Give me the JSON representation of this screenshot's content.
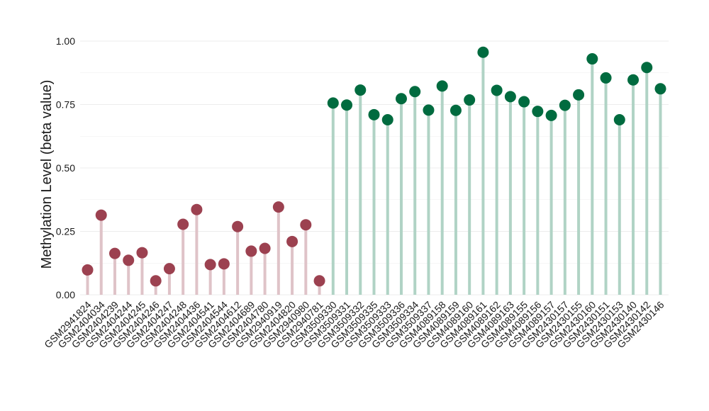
{
  "chart_data": {
    "type": "lollipop",
    "ylabel": "Methylation Level (beta value)",
    "xlabel": "",
    "ylim": [
      0,
      1
    ],
    "yticks": [
      0.0,
      0.25,
      0.5,
      0.75,
      1.0
    ],
    "ytick_labels": [
      "0.00",
      "0.25",
      "0.50",
      "0.75",
      "1.00"
    ],
    "grid": true,
    "colors": {
      "group1_point": "#9c4150",
      "group1_stem": "#dfc3c8",
      "group2_point": "#006b3f",
      "group2_stem": "#b0d3c5",
      "grid": "#ececec"
    },
    "points": [
      {
        "sample": "GSM2941824",
        "value": 0.098,
        "group": 1
      },
      {
        "sample": "GSM2404034",
        "value": 0.314,
        "group": 1
      },
      {
        "sample": "GSM2404239",
        "value": 0.163,
        "group": 1
      },
      {
        "sample": "GSM2404244",
        "value": 0.136,
        "group": 1
      },
      {
        "sample": "GSM2404245",
        "value": 0.166,
        "group": 1
      },
      {
        "sample": "GSM2404246",
        "value": 0.055,
        "group": 1
      },
      {
        "sample": "GSM2404247",
        "value": 0.103,
        "group": 1
      },
      {
        "sample": "GSM2404248",
        "value": 0.278,
        "group": 1
      },
      {
        "sample": "GSM2404436",
        "value": 0.336,
        "group": 1
      },
      {
        "sample": "GSM2404541",
        "value": 0.119,
        "group": 1
      },
      {
        "sample": "GSM2404544",
        "value": 0.122,
        "group": 1
      },
      {
        "sample": "GSM2404612",
        "value": 0.269,
        "group": 1
      },
      {
        "sample": "GSM2404689",
        "value": 0.172,
        "group": 1
      },
      {
        "sample": "GSM2404780",
        "value": 0.183,
        "group": 1
      },
      {
        "sample": "GSM2940919",
        "value": 0.346,
        "group": 1
      },
      {
        "sample": "GSM2404820",
        "value": 0.21,
        "group": 1
      },
      {
        "sample": "GSM2940980",
        "value": 0.276,
        "group": 1
      },
      {
        "sample": "GSM2940781",
        "value": 0.055,
        "group": 1
      },
      {
        "sample": "GSM3509330",
        "value": 0.756,
        "group": 2
      },
      {
        "sample": "GSM3509331",
        "value": 0.748,
        "group": 2
      },
      {
        "sample": "GSM3509332",
        "value": 0.807,
        "group": 2
      },
      {
        "sample": "GSM3509335",
        "value": 0.71,
        "group": 2
      },
      {
        "sample": "GSM3509333",
        "value": 0.69,
        "group": 2
      },
      {
        "sample": "GSM3509336",
        "value": 0.773,
        "group": 2
      },
      {
        "sample": "GSM3509334",
        "value": 0.801,
        "group": 2
      },
      {
        "sample": "GSM3509337",
        "value": 0.728,
        "group": 2
      },
      {
        "sample": "GSM4089158",
        "value": 0.823,
        "group": 2
      },
      {
        "sample": "GSM4089159",
        "value": 0.727,
        "group": 2
      },
      {
        "sample": "GSM4089160",
        "value": 0.768,
        "group": 2
      },
      {
        "sample": "GSM4089161",
        "value": 0.956,
        "group": 2
      },
      {
        "sample": "GSM4089162",
        "value": 0.806,
        "group": 2
      },
      {
        "sample": "GSM4089163",
        "value": 0.781,
        "group": 2
      },
      {
        "sample": "GSM4089155",
        "value": 0.761,
        "group": 2
      },
      {
        "sample": "GSM4089156",
        "value": 0.723,
        "group": 2
      },
      {
        "sample": "GSM4089157",
        "value": 0.707,
        "group": 2
      },
      {
        "sample": "GSM2430157",
        "value": 0.747,
        "group": 2
      },
      {
        "sample": "GSM2430155",
        "value": 0.788,
        "group": 2
      },
      {
        "sample": "GSM2430160",
        "value": 0.93,
        "group": 2
      },
      {
        "sample": "GSM2430151",
        "value": 0.855,
        "group": 2
      },
      {
        "sample": "GSM2430153",
        "value": 0.69,
        "group": 2
      },
      {
        "sample": "GSM2430140",
        "value": 0.847,
        "group": 2
      },
      {
        "sample": "GSM2430142",
        "value": 0.896,
        "group": 2
      },
      {
        "sample": "GSM2430146",
        "value": 0.812,
        "group": 2
      }
    ]
  }
}
